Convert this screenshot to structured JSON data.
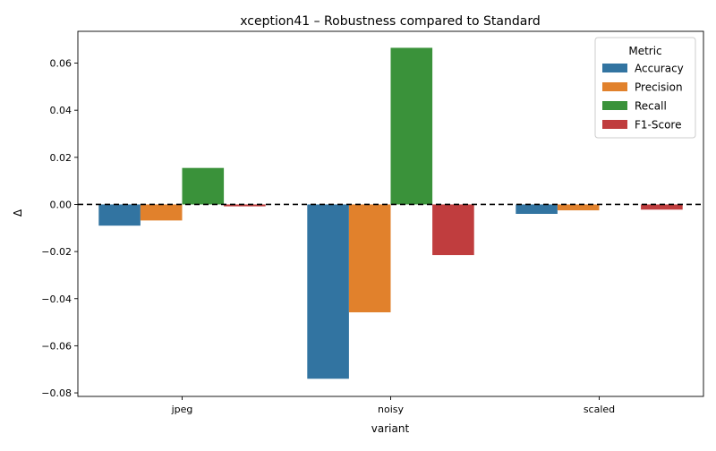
{
  "chart_data": {
    "type": "bar",
    "title": "xception41 – Robustness compared to Standard",
    "xlabel": "variant",
    "ylabel": "Δ",
    "categories": [
      "jpeg",
      "noisy",
      "scaled"
    ],
    "ylim": [
      -0.0815,
      0.0735
    ],
    "yticks": [
      -0.08,
      -0.06,
      -0.04,
      -0.02,
      0.0,
      0.02,
      0.04,
      0.06
    ],
    "ytick_labels": [
      "−0.08",
      "−0.06",
      "−0.04",
      "−0.02",
      "0.00",
      "0.02",
      "0.04",
      "0.06"
    ],
    "reference_line": {
      "y": 0.0,
      "style": "dashed",
      "color": "#000000"
    },
    "legend": {
      "title": "Metric",
      "placement": "top-right"
    },
    "grid": false,
    "series": [
      {
        "name": "Accuracy",
        "color": "#3274a1",
        "values": [
          -0.009,
          -0.074,
          -0.004
        ]
      },
      {
        "name": "Precision",
        "color": "#e1812c",
        "values": [
          -0.0068,
          -0.0458,
          -0.0025
        ]
      },
      {
        "name": "Recall",
        "color": "#3a923a",
        "values": [
          0.0155,
          0.0665,
          0.0
        ]
      },
      {
        "name": "F1-Score",
        "color": "#c03d3e",
        "values": [
          -0.0008,
          -0.0215,
          -0.0022
        ]
      }
    ]
  }
}
